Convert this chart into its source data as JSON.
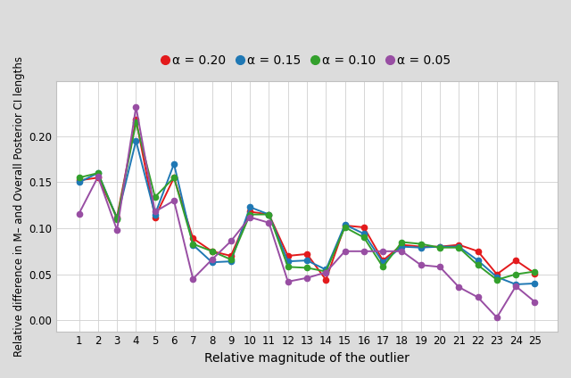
{
  "x": [
    1,
    2,
    3,
    4,
    5,
    6,
    7,
    8,
    9,
    10,
    11,
    12,
    13,
    14,
    15,
    16,
    17,
    18,
    19,
    20,
    21,
    22,
    23,
    24,
    25
  ],
  "series": {
    "alpha_020": [
      0.152,
      0.155,
      0.112,
      0.218,
      0.112,
      0.155,
      0.089,
      0.075,
      0.07,
      0.118,
      0.115,
      0.07,
      0.072,
      0.044,
      0.103,
      0.101,
      0.065,
      0.082,
      0.08,
      0.08,
      0.082,
      0.075,
      0.05,
      0.065,
      0.051
    ],
    "alpha_015": [
      0.15,
      0.16,
      0.111,
      0.195,
      0.115,
      0.17,
      0.082,
      0.063,
      0.064,
      0.123,
      0.115,
      0.064,
      0.065,
      0.055,
      0.104,
      0.094,
      0.063,
      0.08,
      0.079,
      0.08,
      0.08,
      0.065,
      0.047,
      0.039,
      0.04
    ],
    "alpha_010": [
      0.155,
      0.16,
      0.11,
      0.215,
      0.134,
      0.155,
      0.083,
      0.075,
      0.066,
      0.115,
      0.115,
      0.058,
      0.057,
      0.053,
      0.101,
      0.09,
      0.058,
      0.085,
      0.083,
      0.079,
      0.079,
      0.06,
      0.044,
      0.05,
      0.053
    ],
    "alpha_005": [
      0.116,
      0.156,
      0.098,
      0.232,
      0.118,
      0.13,
      0.045,
      0.066,
      0.086,
      0.112,
      0.106,
      0.042,
      0.046,
      0.052,
      0.075,
      0.075,
      0.075,
      0.075,
      0.06,
      0.058,
      0.036,
      0.025,
      0.003,
      0.037,
      0.02
    ]
  },
  "colors": {
    "alpha_020": "#e31a1c",
    "alpha_015": "#1f78b4",
    "alpha_010": "#33a02c",
    "alpha_005": "#984ea3"
  },
  "labels": {
    "alpha_020": "α = 0.20",
    "alpha_015": "α = 0.15",
    "alpha_010": "α = 0.10",
    "alpha_005": "α = 0.05"
  },
  "xlabel": "Relative magnitude of the outlier",
  "ylabel": "Relative difference in M– and Overall Posterior CI lengths",
  "ylim": [
    -0.012,
    0.26
  ],
  "yticks": [
    0.0,
    0.05,
    0.1,
    0.15,
    0.2
  ],
  "figure_facecolor": "#dcdcdc",
  "axes_facecolor": "#ffffff",
  "grid_color": "#ffffff",
  "spine_color": "#c0c0c0",
  "marker_size": 4.5,
  "line_width": 1.4,
  "tick_labelsize": 8.5,
  "xlabel_fontsize": 10,
  "ylabel_fontsize": 8.5,
  "legend_fontsize": 10
}
